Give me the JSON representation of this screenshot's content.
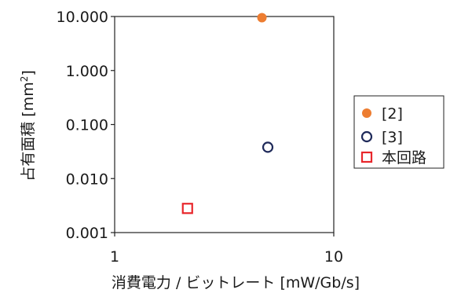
{
  "chart_data": {
    "type": "scatter",
    "title": "",
    "xlabel": "消費電力 / ビットレート [mW/Gb/s]",
    "ylabel_text": "占有面積 [mm",
    "ylabel_sup": "2",
    "ylabel_close": "]",
    "x_scale": "log",
    "y_scale": "log",
    "xlim": [
      1,
      10
    ],
    "ylim": [
      0.001,
      10
    ],
    "x_ticks": [
      {
        "value": 1,
        "label": "1"
      },
      {
        "value": 10,
        "label": "10"
      }
    ],
    "y_ticks": [
      {
        "value": 10,
        "label": "10.000"
      },
      {
        "value": 1,
        "label": "1.000"
      },
      {
        "value": 0.1,
        "label": "0.100"
      },
      {
        "value": 0.01,
        "label": "0.010"
      },
      {
        "value": 0.001,
        "label": "0.001"
      }
    ],
    "grid": false,
    "legend_position": "right",
    "series": [
      {
        "name": "[2]",
        "marker": "filled-circle",
        "color": "#ed7d31",
        "points": [
          {
            "x": 4.7,
            "y": 9.5
          }
        ]
      },
      {
        "name": "[3]",
        "marker": "hollow-circle",
        "color": "#1f2a5a",
        "points": [
          {
            "x": 5.0,
            "y": 0.038
          }
        ]
      },
      {
        "name": "本回路",
        "marker": "hollow-square",
        "color": "#e8262b",
        "points": [
          {
            "x": 2.15,
            "y": 0.0028
          }
        ]
      }
    ]
  }
}
